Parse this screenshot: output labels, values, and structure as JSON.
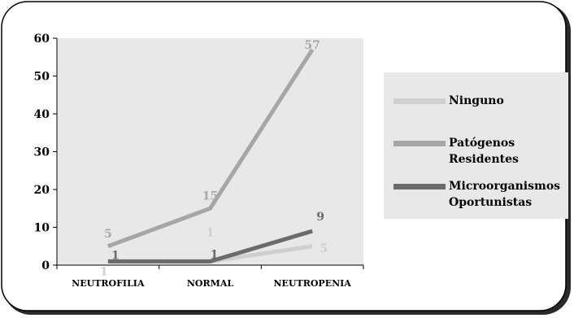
{
  "chart_data": {
    "type": "line",
    "categories": [
      "NEUTROFILIA",
      "NORMAL",
      "NEUTROPENIA"
    ],
    "series": [
      {
        "name": "Ninguno",
        "values": [
          1,
          1,
          5
        ],
        "color": "#cfcfcf"
      },
      {
        "name": "Patógenos Residentes",
        "values": [
          5,
          15,
          57
        ],
        "color": "#a6a6a6"
      },
      {
        "name": "Microorganismos Oportunistas",
        "values": [
          1,
          1,
          9
        ],
        "color": "#6b6b6b"
      }
    ],
    "yticks": [
      0,
      10,
      20,
      30,
      40,
      50,
      60
    ],
    "ylim": [
      0,
      60
    ],
    "grid": false,
    "legend_position": "right",
    "plot_background": "#e8e8e8"
  }
}
